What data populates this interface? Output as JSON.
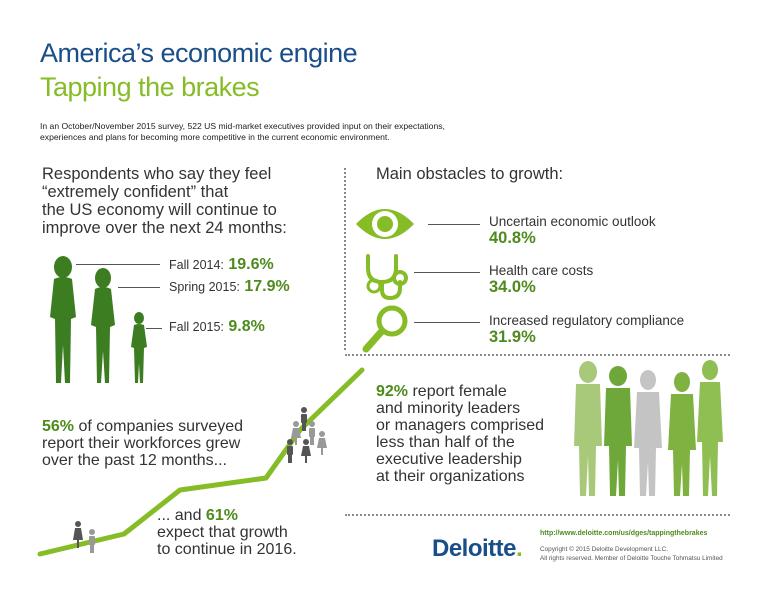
{
  "header": {
    "title": "America’s economic engine",
    "subtitle": "Tapping the brakes",
    "intro_line1": "In an October/November 2015 survey, 522 US mid-market executives provided input on their expectations,",
    "intro_line2": "experiences and plans for becoming more competitive in the current economic environment."
  },
  "confidence": {
    "heading_lines": [
      "Respondents who say they feel",
      "“extremely confident” that",
      "the US economy will continue to",
      "improve over the next 24 months:"
    ],
    "items": [
      {
        "label": "Fall 2014:",
        "value": "19.6%"
      },
      {
        "label": "Spring 2015:",
        "value": "17.9%"
      },
      {
        "label": "Fall 2015:",
        "value": "9.8%"
      }
    ]
  },
  "obstacles": {
    "heading": "Main obstacles to growth:",
    "items": [
      {
        "label": "Uncertain economic outlook",
        "value": "40.8%",
        "icon": "eye-icon"
      },
      {
        "label": "Health care costs",
        "value": "34.0%",
        "icon": "stethoscope-icon"
      },
      {
        "label": "Increased regulatory compliance",
        "value": "31.9%",
        "icon": "magnifier-icon"
      }
    ]
  },
  "workforce": {
    "pct": "56%",
    "line1_rest": " of companies surveyed",
    "line2": "report their workforces grew",
    "line3": "over the past 12 months..."
  },
  "expect": {
    "prefix": "... and ",
    "pct": "61%",
    "line2": "expect that growth",
    "line3": "to continue in 2016."
  },
  "diversity": {
    "pct": "92%",
    "line1_rest": " report female",
    "lines": [
      "and minority leaders",
      "or managers comprised",
      "less than half of the",
      "executive leadership",
      "at their organizations"
    ]
  },
  "footer": {
    "url": "http://www.deloitte.com/us/dges/tappingthebrakes",
    "logo_text": "Deloitte",
    "logo_dot": ".",
    "copyright1": "Copyright © 2015 Deloitte Development LLC.",
    "copyright2": "All rights reserved.  Member of Deloitte Touche Tohmatsu Limited"
  },
  "colors": {
    "brand_blue": "#1a4e8a",
    "green": "#86bc25",
    "dark_green": "#4e8a1c"
  }
}
